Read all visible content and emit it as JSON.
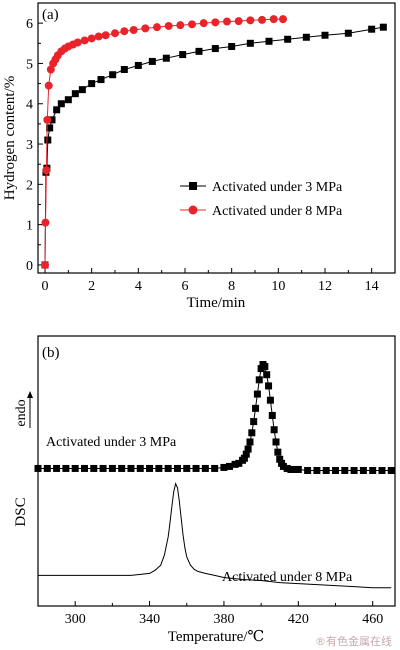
{
  "chart_data": [
    {
      "type": "line",
      "panel_label": "(a)",
      "xlabel": "Time/min",
      "ylabel": "Hydrogen content/%",
      "xlim": [
        -0.3,
        15
      ],
      "ylim": [
        -0.2,
        6.5
      ],
      "x_ticks": [
        0,
        2,
        4,
        6,
        8,
        10,
        12,
        14
      ],
      "y_ticks": [
        0,
        1,
        2,
        3,
        4,
        5,
        6
      ],
      "legend_position": "center-right",
      "series": [
        {
          "name": "Activated under 3 MPa",
          "color": "#000000",
          "marker": "square",
          "x": [
            0.0,
            0.04,
            0.08,
            0.12,
            0.2,
            0.3,
            0.5,
            0.7,
            1.0,
            1.3,
            1.6,
            2.0,
            2.4,
            2.9,
            3.4,
            4.0,
            4.6,
            5.2,
            5.9,
            6.6,
            7.3,
            8.0,
            8.8,
            9.6,
            10.4,
            11.2,
            12.0,
            13.0,
            14.0,
            14.5
          ],
          "y": [
            0.0,
            2.3,
            2.4,
            3.1,
            3.4,
            3.6,
            3.85,
            4.0,
            4.1,
            4.25,
            4.35,
            4.5,
            4.6,
            4.72,
            4.85,
            4.95,
            5.05,
            5.13,
            5.22,
            5.3,
            5.37,
            5.42,
            5.5,
            5.55,
            5.6,
            5.65,
            5.7,
            5.75,
            5.85,
            5.9
          ]
        },
        {
          "name": "Activated under 8 MPa",
          "color": "#e8242a",
          "marker": "circle",
          "x": [
            0.0,
            0.02,
            0.06,
            0.1,
            0.16,
            0.25,
            0.35,
            0.45,
            0.55,
            0.7,
            0.85,
            1.0,
            1.2,
            1.4,
            1.7,
            2.0,
            2.3,
            2.6,
            3.0,
            3.4,
            3.8,
            4.3,
            4.8,
            5.3,
            5.8,
            6.3,
            6.8,
            7.3,
            7.8,
            8.3,
            8.8,
            9.3,
            9.8,
            10.2
          ],
          "y": [
            0.0,
            1.05,
            2.35,
            3.6,
            4.45,
            4.85,
            5.0,
            5.1,
            5.2,
            5.3,
            5.37,
            5.42,
            5.47,
            5.52,
            5.57,
            5.62,
            5.67,
            5.7,
            5.75,
            5.8,
            5.83,
            5.87,
            5.9,
            5.93,
            5.95,
            5.97,
            6.0,
            6.02,
            6.04,
            6.05,
            6.07,
            6.08,
            6.1,
            6.1
          ]
        }
      ]
    },
    {
      "type": "line",
      "panel_label": "(b)",
      "xlabel": "Temperature/℃",
      "ylabel": "DSC",
      "ylabel_annotation": "endo",
      "xlim": [
        280,
        472
      ],
      "ylim": [
        -0.3,
        2.35
      ],
      "x_ticks": [
        300,
        340,
        380,
        420,
        460
      ],
      "series": [
        {
          "name": "Activated under 3 MPa",
          "color": "#000000",
          "marker": "square",
          "x": [
            280,
            285,
            290,
            295,
            300,
            305,
            310,
            315,
            320,
            325,
            330,
            335,
            340,
            345,
            350,
            355,
            360,
            365,
            370,
            375,
            380,
            383,
            386,
            388,
            390,
            391,
            392,
            393,
            394,
            395,
            396,
            397,
            398,
            399,
            400,
            401,
            402,
            403,
            404,
            405,
            406,
            407,
            408,
            409,
            410,
            411,
            412,
            414,
            416,
            418,
            420,
            425,
            430,
            435,
            440,
            445,
            450,
            455,
            460,
            465,
            470
          ],
          "y": [
            1.05,
            1.05,
            1.05,
            1.05,
            1.05,
            1.05,
            1.05,
            1.05,
            1.05,
            1.05,
            1.05,
            1.05,
            1.05,
            1.05,
            1.05,
            1.05,
            1.05,
            1.05,
            1.05,
            1.05,
            1.06,
            1.07,
            1.09,
            1.1,
            1.13,
            1.15,
            1.19,
            1.24,
            1.31,
            1.4,
            1.51,
            1.64,
            1.78,
            1.92,
            2.03,
            2.07,
            2.05,
            1.97,
            1.86,
            1.72,
            1.57,
            1.43,
            1.31,
            1.21,
            1.14,
            1.1,
            1.07,
            1.05,
            1.04,
            1.04,
            1.04,
            1.03,
            1.03,
            1.03,
            1.03,
            1.03,
            1.03,
            1.03,
            1.03,
            1.03,
            1.03
          ],
          "label": "Activated under 3 MPa"
        },
        {
          "name": "Activated under 8 MPa",
          "color": "#000000",
          "marker": "none",
          "x": [
            280,
            290,
            300,
            310,
            320,
            330,
            335,
            340,
            343,
            346,
            348,
            350,
            351,
            352,
            353,
            354,
            355,
            356,
            357,
            358,
            359,
            360,
            362,
            364,
            366,
            368,
            370,
            375,
            380,
            390,
            400,
            410,
            420,
            430,
            440,
            450,
            460,
            470
          ],
          "y": [
            0.0,
            0.0,
            0.0,
            0.0,
            0.0,
            0.0,
            0.01,
            0.02,
            0.05,
            0.1,
            0.2,
            0.38,
            0.52,
            0.68,
            0.82,
            0.9,
            0.86,
            0.73,
            0.56,
            0.4,
            0.27,
            0.18,
            0.1,
            0.06,
            0.04,
            0.03,
            0.02,
            0.0,
            -0.02,
            -0.04,
            -0.05,
            -0.07,
            -0.08,
            -0.09,
            -0.1,
            -0.11,
            -0.12,
            -0.12
          ],
          "label": "Activated under 8 MPa"
        }
      ]
    }
  ],
  "watermark": "®有色金属在线"
}
